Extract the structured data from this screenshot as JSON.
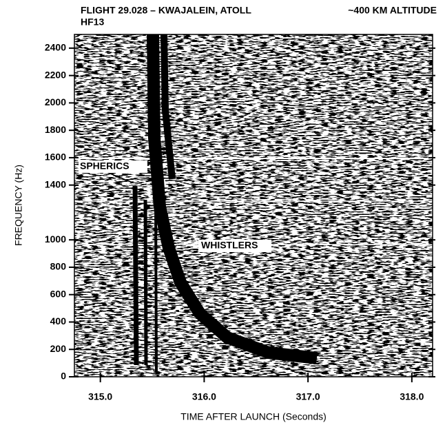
{
  "chart_data": {
    "type": "spectrogram",
    "title": "FLIGHT 29.028 – KWAJALEIN, ATOLL",
    "subtitle": "HF13",
    "altitude": "~400 KM ALTITUDE",
    "xlabel": "TIME AFTER LAUNCH (Seconds)",
    "ylabel": "FREQUENCY (Hz)",
    "xlim": [
      314.75,
      318.2
    ],
    "xticks": [
      {
        "value": 315,
        "label": "315.0"
      },
      {
        "value": 316,
        "label": "316.0"
      },
      {
        "value": 317,
        "label": "317.0"
      },
      {
        "value": 318,
        "label": "318.0"
      }
    ],
    "ylim": [
      0,
      2500
    ],
    "yticks": [
      0,
      200,
      400,
      600,
      800,
      1000,
      1400,
      1600,
      1800,
      2000,
      2200,
      2400
    ],
    "annotations": [
      "SPHERICS",
      "WHISTLERS"
    ]
  }
}
